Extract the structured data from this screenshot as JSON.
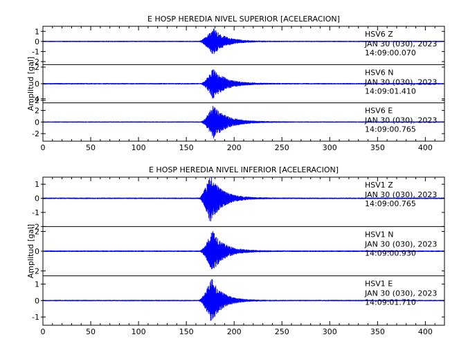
{
  "chart_data": [
    {
      "type": "line",
      "title": "E HOSP HEREDIA NIVEL SUPERIOR [ACELERACION]",
      "ylabel": "Amplitud [gal]",
      "xlabel": "",
      "xlim": [
        0,
        420
      ],
      "x_ticks": [
        0,
        50,
        100,
        150,
        200,
        250,
        300,
        350,
        400
      ],
      "colors": {
        "trace": "#0000ff",
        "axes": "#000000"
      },
      "grid": false,
      "traces": [
        {
          "station": "HSV6",
          "component": "Z",
          "label": "HSV6    Z",
          "date": "JAN 30 (030), 2023",
          "time": "14:09:00.070",
          "ylim": [
            -2.3,
            1.5
          ],
          "y_ticks": [
            1,
            0,
            -1,
            -2
          ],
          "envelope": {
            "noise": 0.06,
            "onset": 163,
            "peak_time": 178,
            "peak_amplitude": 1.4,
            "decay": 12,
            "end": 215
          }
        },
        {
          "station": "HSV6",
          "component": "N",
          "label": "HSV6    N",
          "date": "JAN 30 (030), 2023",
          "time": "14:09:01.410",
          "ylim": [
            -2.3,
            2.3
          ],
          "y_ticks": [
            2,
            0,
            -2
          ],
          "envelope": {
            "noise": 0.08,
            "onset": 165,
            "peak_time": 178,
            "peak_amplitude": 1.9,
            "decay": 13,
            "end": 215
          }
        },
        {
          "station": "HSV6",
          "component": "E",
          "label": "HSV6    E",
          "date": "JAN 30 (030), 2023",
          "time": "14:09:00.765",
          "ylim": [
            -3.3,
            3.3
          ],
          "y_ticks": [
            4,
            2,
            0,
            -2
          ],
          "envelope": {
            "noise": 0.1,
            "onset": 165,
            "peak_time": 178,
            "peak_amplitude": 3.0,
            "decay": 14,
            "end": 220
          }
        }
      ]
    },
    {
      "type": "line",
      "title": "E HOSP HEREDIA NIVEL INFERIOR [ACELERACION]",
      "ylabel": "Amplitud [gal]",
      "xlabel": "",
      "xlim": [
        0,
        420
      ],
      "x_ticks": [
        0,
        50,
        100,
        150,
        200,
        250,
        300,
        350,
        400
      ],
      "colors": {
        "trace": "#0000ff",
        "axes": "#000000"
      },
      "grid": false,
      "traces": [
        {
          "station": "HSV1",
          "component": "Z",
          "label": "HSV1    Z",
          "date": "JAN 30 (030), 2023",
          "time": "14:09:00.765",
          "ylim": [
            -2.0,
            1.5
          ],
          "y_ticks": [
            1,
            0,
            -1,
            -2
          ],
          "envelope": {
            "noise": 0.05,
            "onset": 163,
            "peak_time": 175,
            "peak_amplitude": 1.8,
            "decay": 12,
            "end": 210
          }
        },
        {
          "station": "HSV1",
          "component": "N",
          "label": "HSV1    N",
          "date": "JAN 30 (030), 2023",
          "time": "14:09:00.930",
          "ylim": [
            -2.5,
            2.5
          ],
          "y_ticks": [
            2,
            0,
            -2
          ],
          "envelope": {
            "noise": 0.07,
            "onset": 164,
            "peak_time": 177,
            "peak_amplitude": 2.2,
            "decay": 12,
            "end": 212
          }
        },
        {
          "station": "HSV1",
          "component": "E",
          "label": "HSV1    E",
          "date": "JAN 30 (030), 2023",
          "time": "14:09:01.710",
          "ylim": [
            -1.5,
            1.5
          ],
          "y_ticks": [
            1,
            0,
            -1
          ],
          "envelope": {
            "noise": 0.04,
            "onset": 163,
            "peak_time": 176,
            "peak_amplitude": 1.45,
            "decay": 11,
            "end": 210
          }
        }
      ]
    }
  ]
}
